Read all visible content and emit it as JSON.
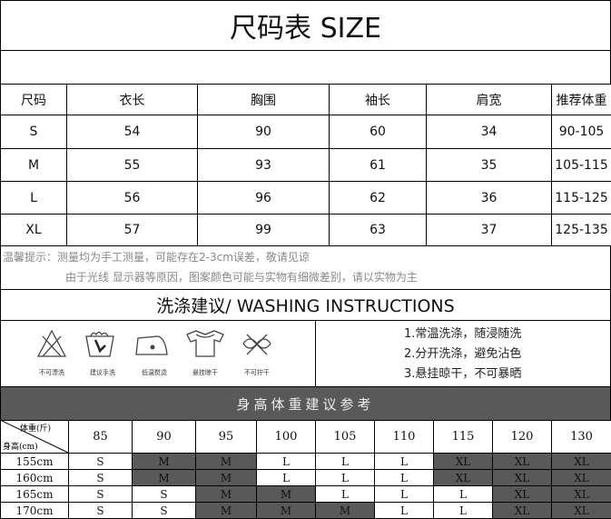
{
  "title": "尺码表 SIZE",
  "size_table": {
    "header": [
      "尺码",
      "衣长",
      "胸围",
      "袖长",
      "肩宽",
      "推荐体重"
    ],
    "rows": [
      [
        "S",
        "54",
        "90",
        "60",
        "34",
        "90-105"
      ],
      [
        "M",
        "55",
        "93",
        "61",
        "35",
        "105-115"
      ],
      [
        "L",
        "56",
        "96",
        "62",
        "36",
        "115-125"
      ],
      [
        "XL",
        "57",
        "99",
        "63",
        "37",
        "125-135"
      ]
    ]
  },
  "notes": [
    "温馨提示：测量均为手工测量，可能存在2-3cm误差，敬请见谅",
    "由于光线 显示器等原因，图案颜色可能与实物有细微差别，请以实物为主"
  ],
  "washing": {
    "title": "洗涤建议/ WASHING INSTRUCTIONS",
    "icons": [
      "不可漂洗",
      "建议手洗",
      "低温熨烫",
      "悬挂晾干",
      "不可拧干"
    ],
    "instructions": [
      "1.常温洗涤，随浸随洗",
      "2.分开洗涤，避免沾色",
      "3.悬挂晾干，不可暴晒"
    ]
  },
  "reference": {
    "title": "身高体重建议参考",
    "weight_label": "体重(斤)",
    "height_label": "身高(cm)",
    "weights": [
      "85",
      "90",
      "95",
      "100",
      "105",
      "110",
      "115",
      "120",
      "130"
    ],
    "rows": [
      {
        "height": "155cm",
        "sizes": [
          "S",
          "M",
          "M",
          "L",
          "L",
          "L",
          "XL",
          "XL",
          "XL"
        ]
      },
      {
        "height": "160cm",
        "sizes": [
          "S",
          "M",
          "M",
          "L",
          "L",
          "L",
          "XL",
          "XL",
          "XL"
        ]
      },
      {
        "height": "165cm",
        "sizes": [
          "S",
          "S",
          "M",
          "M",
          "L",
          "L",
          "L",
          "XL",
          "XL"
        ]
      },
      {
        "height": "170cm",
        "sizes": [
          "S",
          "S",
          "M",
          "M",
          "M",
          "L",
          "L",
          "XL",
          "XL"
        ]
      }
    ]
  }
}
